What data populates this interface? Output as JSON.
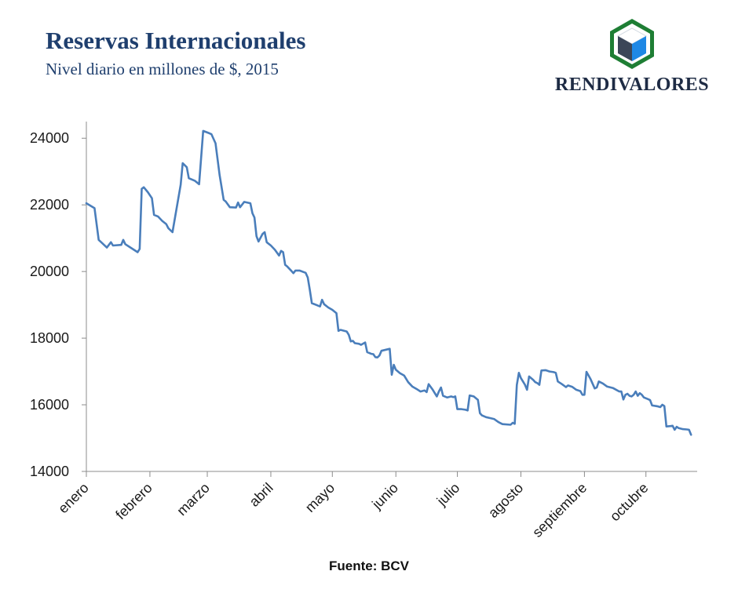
{
  "header": {
    "title": "Reservas Internacionales",
    "subtitle": "Nivel diario en millones de $, 2015"
  },
  "brand": {
    "name": "RENDIVALORES"
  },
  "source": "Fuente: BCV",
  "colors": {
    "line": "#4a7ebb",
    "axis": "#8c8c8c",
    "title": "#1f3f6e",
    "logo_green": "#1e7e34",
    "logo_blue": "#1e88e5",
    "logo_dark": "#3b4658"
  },
  "chart_data": {
    "type": "line",
    "title": "Reservas Internacionales",
    "subtitle": "Nivel diario en millones de $, 2015",
    "xlabel": "",
    "ylabel": "",
    "ylim": [
      14000,
      24500
    ],
    "xlim": [
      0,
      298
    ],
    "yticks": [
      14000,
      16000,
      18000,
      20000,
      22000,
      24000
    ],
    "month_ticks": [
      {
        "label": "enero",
        "day": 0
      },
      {
        "label": "febrero",
        "day": 31
      },
      {
        "label": "marzo",
        "day": 59
      },
      {
        "label": "abril",
        "day": 90
      },
      {
        "label": "mayo",
        "day": 120
      },
      {
        "label": "junio",
        "day": 151
      },
      {
        "label": "julio",
        "day": 181
      },
      {
        "label": "agosto",
        "day": 212
      },
      {
        "label": "septiembre",
        "day": 243
      },
      {
        "label": "octubre",
        "day": 273
      }
    ],
    "grid": false,
    "series": [
      {
        "name": "Reservas Internacionales",
        "points": [
          [
            0,
            22050
          ],
          [
            4,
            21900
          ],
          [
            6,
            20950
          ],
          [
            10,
            20720
          ],
          [
            12,
            20880
          ],
          [
            13,
            20780
          ],
          [
            17,
            20800
          ],
          [
            18,
            20950
          ],
          [
            19,
            20820
          ],
          [
            22,
            20700
          ],
          [
            25,
            20580
          ],
          [
            26,
            20680
          ],
          [
            27,
            22480
          ],
          [
            28,
            22530
          ],
          [
            30,
            22380
          ],
          [
            32,
            22200
          ],
          [
            33,
            21700
          ],
          [
            35,
            21650
          ],
          [
            37,
            21520
          ],
          [
            39,
            21420
          ],
          [
            40,
            21300
          ],
          [
            42,
            21180
          ],
          [
            46,
            22600
          ],
          [
            47,
            23250
          ],
          [
            49,
            23130
          ],
          [
            50,
            22800
          ],
          [
            53,
            22720
          ],
          [
            55,
            22620
          ],
          [
            57,
            24220
          ],
          [
            60,
            24150
          ],
          [
            61,
            24120
          ],
          [
            63,
            23850
          ],
          [
            65,
            22900
          ],
          [
            67,
            22150
          ],
          [
            68,
            22100
          ],
          [
            70,
            21930
          ],
          [
            73,
            21920
          ],
          [
            74,
            22070
          ],
          [
            75,
            21930
          ],
          [
            77,
            22090
          ],
          [
            80,
            22050
          ],
          [
            81,
            21750
          ],
          [
            82,
            21620
          ],
          [
            83,
            21060
          ],
          [
            84,
            20900
          ],
          [
            86,
            21130
          ],
          [
            87,
            21180
          ],
          [
            88,
            20880
          ],
          [
            90,
            20780
          ],
          [
            92,
            20650
          ],
          [
            94,
            20480
          ],
          [
            95,
            20620
          ],
          [
            96,
            20580
          ],
          [
            97,
            20200
          ],
          [
            98,
            20150
          ],
          [
            100,
            20020
          ],
          [
            101,
            19950
          ],
          [
            102,
            20030
          ],
          [
            104,
            20030
          ],
          [
            107,
            19960
          ],
          [
            108,
            19820
          ],
          [
            109,
            19450
          ],
          [
            110,
            19050
          ],
          [
            112,
            19000
          ],
          [
            114,
            18950
          ],
          [
            115,
            19150
          ],
          [
            116,
            19020
          ],
          [
            118,
            18920
          ],
          [
            120,
            18850
          ],
          [
            121,
            18800
          ],
          [
            122,
            18750
          ],
          [
            123,
            18220
          ],
          [
            124,
            18250
          ],
          [
            127,
            18200
          ],
          [
            128,
            18100
          ],
          [
            129,
            17900
          ],
          [
            130,
            17920
          ],
          [
            131,
            17850
          ],
          [
            133,
            17830
          ],
          [
            134,
            17800
          ],
          [
            136,
            17870
          ],
          [
            137,
            17580
          ],
          [
            139,
            17530
          ],
          [
            140,
            17520
          ],
          [
            141,
            17430
          ],
          [
            142,
            17420
          ],
          [
            143,
            17480
          ],
          [
            144,
            17620
          ],
          [
            148,
            17680
          ],
          [
            149,
            16900
          ],
          [
            150,
            17200
          ],
          [
            151,
            17050
          ],
          [
            153,
            16950
          ],
          [
            155,
            16880
          ],
          [
            157,
            16680
          ],
          [
            159,
            16550
          ],
          [
            161,
            16480
          ],
          [
            163,
            16400
          ],
          [
            165,
            16430
          ],
          [
            166,
            16380
          ],
          [
            167,
            16620
          ],
          [
            169,
            16450
          ],
          [
            171,
            16250
          ],
          [
            172,
            16400
          ],
          [
            173,
            16520
          ],
          [
            174,
            16270
          ],
          [
            176,
            16220
          ],
          [
            178,
            16250
          ],
          [
            179,
            16230
          ],
          [
            180,
            16250
          ],
          [
            181,
            15870
          ],
          [
            183,
            15870
          ],
          [
            185,
            15850
          ],
          [
            186,
            15830
          ],
          [
            187,
            16280
          ],
          [
            189,
            16250
          ],
          [
            191,
            16150
          ],
          [
            192,
            15750
          ],
          [
            193,
            15680
          ],
          [
            195,
            15630
          ],
          [
            197,
            15600
          ],
          [
            199,
            15570
          ],
          [
            201,
            15480
          ],
          [
            202,
            15450
          ],
          [
            203,
            15420
          ],
          [
            207,
            15400
          ],
          [
            208,
            15460
          ],
          [
            209,
            15430
          ],
          [
            210,
            16600
          ],
          [
            211,
            16960
          ],
          [
            212,
            16800
          ],
          [
            214,
            16600
          ],
          [
            215,
            16450
          ],
          [
            216,
            16850
          ],
          [
            218,
            16750
          ],
          [
            219,
            16680
          ],
          [
            220,
            16650
          ],
          [
            221,
            16600
          ],
          [
            222,
            17030
          ],
          [
            224,
            17040
          ],
          [
            226,
            17000
          ],
          [
            228,
            16980
          ],
          [
            229,
            16960
          ],
          [
            230,
            16700
          ],
          [
            232,
            16620
          ],
          [
            234,
            16530
          ],
          [
            235,
            16580
          ],
          [
            237,
            16540
          ],
          [
            239,
            16450
          ],
          [
            241,
            16410
          ],
          [
            242,
            16300
          ],
          [
            243,
            16300
          ],
          [
            244,
            16990
          ],
          [
            246,
            16770
          ],
          [
            248,
            16490
          ],
          [
            249,
            16520
          ],
          [
            250,
            16700
          ],
          [
            252,
            16640
          ],
          [
            254,
            16550
          ],
          [
            257,
            16500
          ],
          [
            260,
            16400
          ],
          [
            261,
            16400
          ],
          [
            262,
            16160
          ],
          [
            263,
            16300
          ],
          [
            264,
            16330
          ],
          [
            265,
            16270
          ],
          [
            266,
            16250
          ],
          [
            267,
            16300
          ],
          [
            268,
            16400
          ],
          [
            269,
            16270
          ],
          [
            270,
            16350
          ],
          [
            271,
            16300
          ],
          [
            272,
            16220
          ],
          [
            274,
            16170
          ],
          [
            275,
            16140
          ],
          [
            276,
            15980
          ],
          [
            278,
            15960
          ],
          [
            279,
            15950
          ],
          [
            280,
            15930
          ],
          [
            281,
            16000
          ],
          [
            282,
            15960
          ],
          [
            283,
            15350
          ],
          [
            285,
            15360
          ],
          [
            286,
            15370
          ],
          [
            287,
            15250
          ],
          [
            288,
            15340
          ],
          [
            289,
            15300
          ],
          [
            291,
            15270
          ],
          [
            293,
            15260
          ],
          [
            294,
            15250
          ],
          [
            295,
            15100
          ]
        ]
      }
    ]
  }
}
